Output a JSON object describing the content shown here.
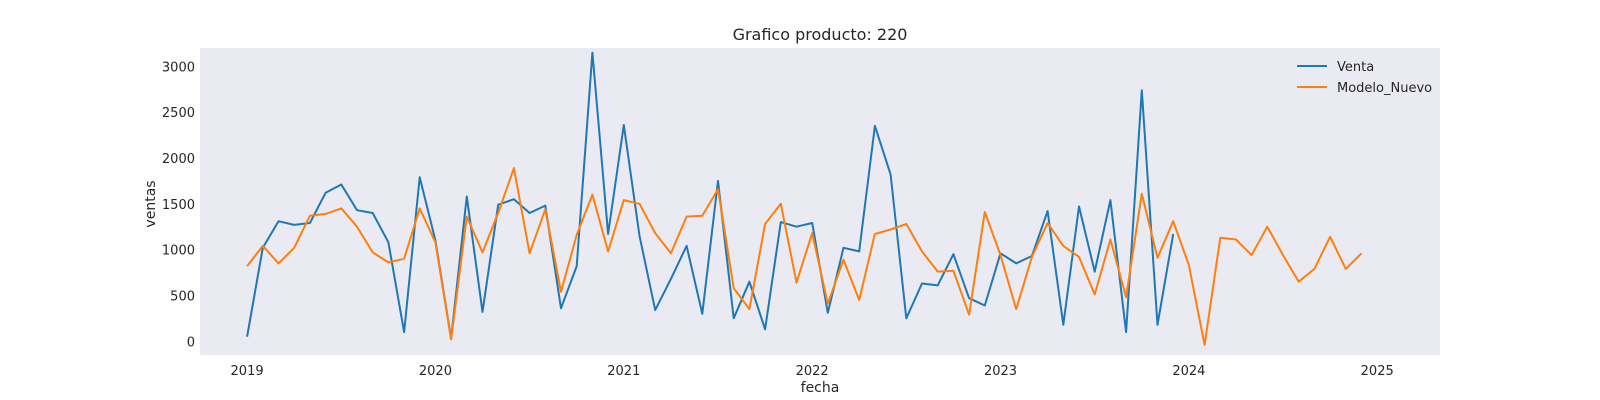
{
  "chart_data": {
    "type": "line",
    "title": "Grafico producto: 220",
    "xlabel": "fecha",
    "ylabel": "ventas",
    "x_ticks": [
      "2019",
      "2020",
      "2021",
      "2022",
      "2023",
      "2024",
      "2025"
    ],
    "y_ticks": [
      0,
      500,
      1000,
      1500,
      2000,
      2500,
      3000
    ],
    "xlim": [
      "2018-10-01",
      "2025-05-01"
    ],
    "ylim": [
      -150,
      3200
    ],
    "grid": false,
    "background": "#eaeaf2",
    "legend": "top-right",
    "series": [
      {
        "name": "Venta",
        "color": "#1f77b4",
        "x": [
          "2019-01",
          "2019-02",
          "2019-03",
          "2019-04",
          "2019-05",
          "2019-06",
          "2019-07",
          "2019-08",
          "2019-09",
          "2019-10",
          "2019-11",
          "2019-12",
          "2020-01",
          "2020-02",
          "2020-03",
          "2020-04",
          "2020-05",
          "2020-06",
          "2020-07",
          "2020-08",
          "2020-09",
          "2020-10",
          "2020-11",
          "2020-12",
          "2021-01",
          "2021-02",
          "2021-03",
          "2021-04",
          "2021-05",
          "2021-06",
          "2021-07",
          "2021-08",
          "2021-09",
          "2021-10",
          "2021-11",
          "2021-12",
          "2022-01",
          "2022-02",
          "2022-03",
          "2022-04",
          "2022-05",
          "2022-06",
          "2022-07",
          "2022-08",
          "2022-09",
          "2022-10",
          "2022-11",
          "2022-12",
          "2023-01",
          "2023-02",
          "2023-03",
          "2023-04",
          "2023-05",
          "2023-06",
          "2023-07",
          "2023-08",
          "2023-09",
          "2023-10",
          "2023-11",
          "2023-12"
        ],
        "values": [
          50,
          1020,
          1310,
          1270,
          1290,
          1620,
          1710,
          1430,
          1400,
          1080,
          100,
          1790,
          1100,
          30,
          1580,
          320,
          1490,
          1550,
          1400,
          1480,
          360,
          820,
          3150,
          1170,
          2360,
          1150,
          340,
          680,
          1040,
          300,
          1750,
          250,
          650,
          130,
          1300,
          1250,
          1290,
          310,
          1020,
          980,
          2350,
          1820,
          250,
          630,
          610,
          950,
          470,
          390,
          960,
          850,
          930,
          1420,
          180,
          1470,
          760,
          1540,
          100,
          2740,
          180,
          1170
        ]
      },
      {
        "name": "Modelo_Nuevo",
        "color": "#ff7f0e",
        "x": [
          "2019-01",
          "2019-02",
          "2019-03",
          "2019-04",
          "2019-05",
          "2019-06",
          "2019-07",
          "2019-08",
          "2019-09",
          "2019-10",
          "2019-11",
          "2019-12",
          "2020-01",
          "2020-02",
          "2020-03",
          "2020-04",
          "2020-05",
          "2020-06",
          "2020-07",
          "2020-08",
          "2020-09",
          "2020-10",
          "2020-11",
          "2020-12",
          "2021-01",
          "2021-02",
          "2021-03",
          "2021-04",
          "2021-05",
          "2021-06",
          "2021-07",
          "2021-08",
          "2021-09",
          "2021-10",
          "2021-11",
          "2021-12",
          "2022-01",
          "2022-02",
          "2022-03",
          "2022-04",
          "2022-05",
          "2022-06",
          "2022-07",
          "2022-08",
          "2022-09",
          "2022-10",
          "2022-11",
          "2022-12",
          "2023-01",
          "2023-02",
          "2023-03",
          "2023-04",
          "2023-05",
          "2023-06",
          "2023-07",
          "2023-08",
          "2023-09",
          "2023-10",
          "2023-11",
          "2023-12",
          "2024-01",
          "2024-02",
          "2024-03",
          "2024-04",
          "2024-05",
          "2024-06",
          "2024-07",
          "2024-08",
          "2024-09",
          "2024-10",
          "2024-11",
          "2024-12"
        ],
        "values": [
          820,
          1040,
          850,
          1020,
          1370,
          1390,
          1450,
          1250,
          970,
          860,
          900,
          1450,
          1080,
          20,
          1360,
          970,
          1400,
          1890,
          960,
          1440,
          540,
          1160,
          1600,
          980,
          1540,
          1500,
          1180,
          960,
          1360,
          1370,
          1660,
          580,
          350,
          1280,
          1500,
          640,
          1180,
          410,
          890,
          450,
          1170,
          1220,
          1280,
          980,
          760,
          770,
          290,
          1410,
          940,
          350,
          920,
          1290,
          1040,
          920,
          510,
          1110,
          480,
          1610,
          910,
          1310,
          830,
          -40,
          1130,
          1110,
          940,
          1250,
          940,
          650,
          790,
          1140,
          790,
          960
        ]
      }
    ]
  }
}
